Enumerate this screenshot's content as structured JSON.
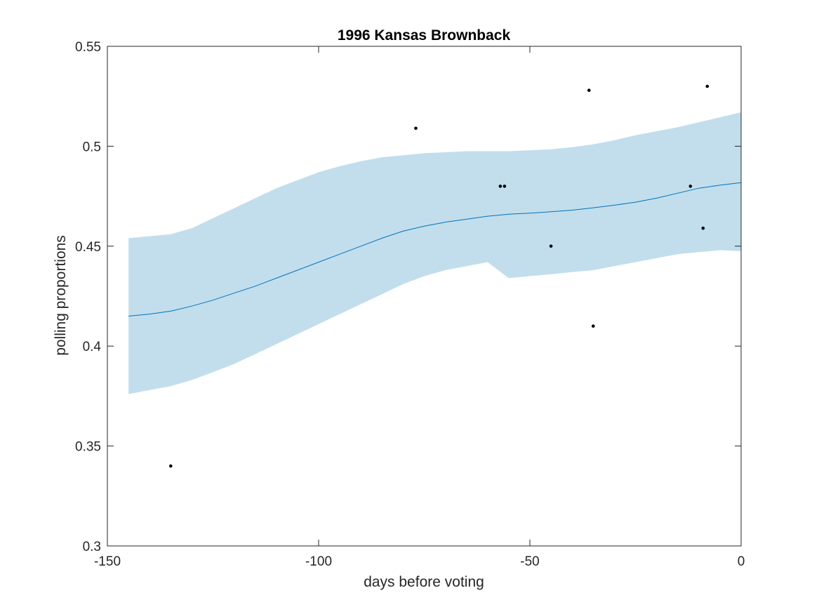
{
  "chart_data": {
    "type": "line",
    "title": "1996 Kansas Brownback",
    "xlabel": "days before voting",
    "ylabel": "polling proportions",
    "xlim": [
      -150,
      0
    ],
    "ylim": [
      0.3,
      0.55
    ],
    "xticks": [
      -150,
      -100,
      -50,
      0
    ],
    "yticks": [
      0.3,
      0.35,
      0.4,
      0.45,
      0.5,
      0.55
    ],
    "xtick_labels": [
      "-150",
      "-100",
      "-50",
      "0"
    ],
    "ytick_labels": [
      "0.3",
      "0.35",
      "0.4",
      "0.45",
      "0.5",
      "0.55"
    ],
    "grid": false,
    "colors": {
      "band": "#c2deec",
      "line": "#0072bd",
      "points": "#000000",
      "axes": "#262626"
    },
    "series": [
      {
        "type": "line",
        "x": [
          -145,
          -140,
          -135,
          -130,
          -125,
          -120,
          -115,
          -110,
          -105,
          -100,
          -95,
          -90,
          -85,
          -80,
          -75,
          -70,
          -65,
          -60,
          -55,
          -50,
          -45,
          -40,
          -35,
          -30,
          -25,
          -20,
          -15,
          -10,
          -5,
          0
        ],
        "values": [
          0.415,
          0.416,
          0.4175,
          0.42,
          0.423,
          0.4265,
          0.43,
          0.434,
          0.438,
          0.442,
          0.446,
          0.45,
          0.454,
          0.4575,
          0.46,
          0.462,
          0.4635,
          0.465,
          0.466,
          0.4665,
          0.4672,
          0.468,
          0.4692,
          0.4705,
          0.472,
          0.474,
          0.4765,
          0.479,
          0.4805,
          0.4818
        ]
      },
      {
        "type": "area-band",
        "x": [
          -145,
          -140,
          -135,
          -130,
          -125,
          -120,
          -115,
          -110,
          -105,
          -100,
          -95,
          -90,
          -85,
          -80,
          -75,
          -70,
          -65,
          -60,
          -55,
          -50,
          -45,
          -40,
          -35,
          -30,
          -25,
          -20,
          -15,
          -10,
          -5,
          0
        ],
        "lower": [
          0.376,
          0.378,
          0.38,
          0.383,
          0.387,
          0.391,
          0.396,
          0.401,
          0.406,
          0.411,
          0.416,
          0.421,
          0.426,
          0.431,
          0.435,
          0.438,
          0.44,
          0.442,
          0.434,
          0.435,
          0.436,
          0.437,
          0.438,
          0.44,
          0.442,
          0.444,
          0.446,
          0.447,
          0.448,
          0.4475
        ],
        "upper": [
          0.454,
          0.455,
          0.456,
          0.459,
          0.464,
          0.469,
          0.474,
          0.479,
          0.483,
          0.487,
          0.49,
          0.4925,
          0.4945,
          0.4955,
          0.4965,
          0.497,
          0.4975,
          0.4975,
          0.4975,
          0.498,
          0.4985,
          0.4995,
          0.501,
          0.503,
          0.5055,
          0.5075,
          0.5095,
          0.512,
          0.5145,
          0.517
        ]
      },
      {
        "type": "scatter",
        "x": [
          -135,
          -77,
          -57,
          -56,
          -45,
          -36,
          -35,
          -12,
          -9,
          -8
        ],
        "values": [
          0.34,
          0.509,
          0.48,
          0.48,
          0.45,
          0.528,
          0.41,
          0.48,
          0.459,
          0.53
        ]
      }
    ]
  }
}
